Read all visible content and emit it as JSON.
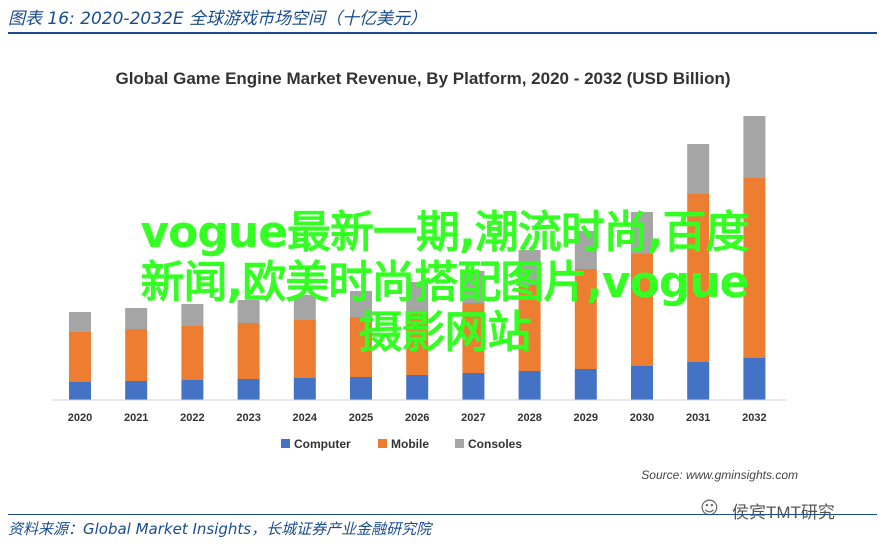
{
  "figure_title": "图表 16:  2020-2032E 全球游戏市场空间（十亿美元）",
  "source_note": "资料来源：Global Market Insights，长城证券产业金融研究院",
  "watermark": "侯宾TMT研究",
  "overlay_lines": [
    "vogue最新一期,潮流时尚,百度",
    "新闻,欧美时尚搭配图片,vogue",
    "摄影网站"
  ],
  "chart_data": {
    "type": "bar",
    "stacked": true,
    "title": "Global Game Engine Market Revenue, By Platform, 2020 - 2032 (USD Billion)",
    "categories": [
      "2020",
      "2021",
      "2022",
      "2023",
      "2024",
      "2025",
      "2026",
      "2027",
      "2028",
      "2029",
      "2030",
      "2031",
      "2032"
    ],
    "series": [
      {
        "name": "Computer",
        "color": "#4472c4",
        "values": [
          0.9,
          0.95,
          1.0,
          1.05,
          1.1,
          1.15,
          1.25,
          1.35,
          1.45,
          1.55,
          1.7,
          1.9,
          2.1
        ]
      },
      {
        "name": "Mobile",
        "color": "#ed7d31",
        "values": [
          2.5,
          2.6,
          2.7,
          2.8,
          2.9,
          3.0,
          3.2,
          3.5,
          4.3,
          5.0,
          5.6,
          8.4,
          9.0
        ]
      },
      {
        "name": "Consoles",
        "color": "#a5a5a5",
        "values": [
          1.0,
          1.05,
          1.1,
          1.15,
          1.25,
          1.3,
          1.45,
          1.6,
          1.75,
          1.9,
          2.1,
          2.5,
          3.1
        ]
      }
    ],
    "ymax": 14.6,
    "source": "Source: www.gminsights.com",
    "xlabel": "",
    "ylabel": ""
  }
}
